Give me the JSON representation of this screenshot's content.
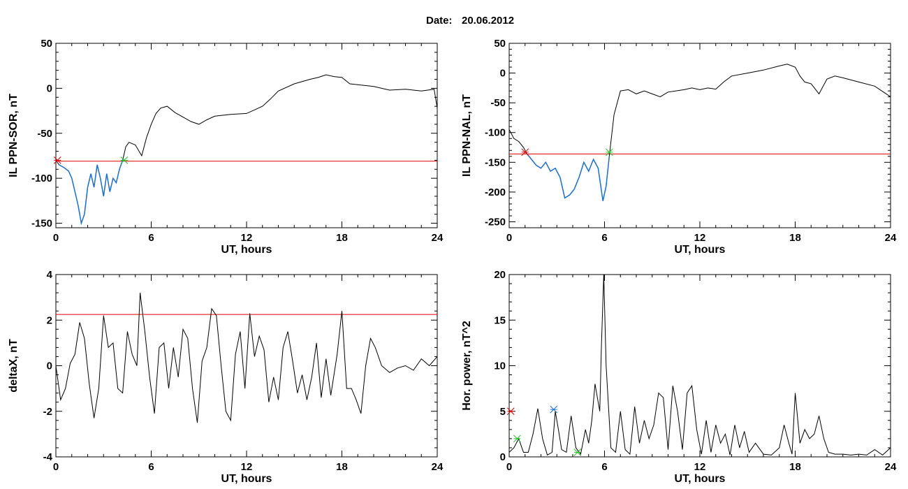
{
  "header": {
    "date_label": "Date:",
    "date_value": "20.06.2012"
  },
  "colors": {
    "main_line": "#000000",
    "storm_segment": "#1f6fd0",
    "threshold": "#e00000",
    "start_marker": "#e00000",
    "end_marker": "#2ec02e"
  },
  "chart_data": [
    {
      "id": "ppn_sor",
      "type": "line",
      "xlabel": "UT, hours",
      "ylabel": "IL PPN-SOR, nT",
      "xlim": [
        0,
        24
      ],
      "ylim": [
        -155,
        50
      ],
      "xticks": [
        0,
        6,
        12,
        18,
        24
      ],
      "yticks": [
        -150,
        -100,
        -50,
        0,
        50
      ],
      "threshold": -81,
      "highlight_range": [
        0.1,
        4.3
      ],
      "markers": [
        {
          "x": 0.1,
          "y": -80,
          "kind": "start"
        },
        {
          "x": 4.3,
          "y": -80,
          "kind": "end"
        }
      ],
      "series": [
        {
          "x": [
            0,
            0.2,
            0.5,
            0.8,
            1.0,
            1.2,
            1.4,
            1.6,
            1.8,
            2.0,
            2.2,
            2.4,
            2.6,
            2.8,
            3.0,
            3.2,
            3.4,
            3.6,
            3.8,
            4.0,
            4.2,
            4.4,
            4.6,
            5.0,
            5.4,
            5.7,
            6.0,
            6.3,
            6.6,
            7.0,
            7.5,
            8.0,
            8.5,
            9.0,
            9.5,
            10,
            11,
            12,
            12.5,
            13,
            13.5,
            14,
            15,
            16,
            16.5,
            17,
            17.5,
            18,
            18.5,
            19,
            20,
            21,
            22,
            23,
            23.8,
            24
          ],
          "y": [
            -80,
            -85,
            -88,
            -92,
            -100,
            -115,
            -130,
            -150,
            -140,
            -110,
            -95,
            -110,
            -85,
            -100,
            -120,
            -95,
            -115,
            -100,
            -105,
            -90,
            -80,
            -65,
            -60,
            -63,
            -75,
            -55,
            -40,
            -28,
            -22,
            -20,
            -27,
            -32,
            -37,
            -40,
            -35,
            -31,
            -29,
            -28,
            -24,
            -20,
            -12,
            -3,
            5,
            10,
            12,
            15,
            13,
            12,
            5,
            4,
            2,
            -2,
            -1,
            -3,
            -1,
            -22
          ]
        }
      ]
    },
    {
      "id": "ppn_nal",
      "type": "line",
      "xlabel": "UT, hours",
      "ylabel": "IL PPN-NAL, nT",
      "xlim": [
        0,
        24
      ],
      "ylim": [
        -260,
        50
      ],
      "xticks": [
        0,
        6,
        12,
        18,
        24
      ],
      "yticks": [
        -250,
        -200,
        -150,
        -100,
        -50,
        0,
        50
      ],
      "threshold": -136,
      "highlight_range": [
        1.0,
        6.3
      ],
      "markers": [
        {
          "x": 1.0,
          "y": -133,
          "kind": "start"
        },
        {
          "x": 6.3,
          "y": -133,
          "kind": "end"
        }
      ],
      "series": [
        {
          "x": [
            0,
            0.3,
            0.6,
            0.9,
            1.1,
            1.4,
            1.7,
            2.0,
            2.3,
            2.6,
            2.9,
            3.2,
            3.5,
            3.8,
            4.1,
            4.4,
            4.7,
            5.0,
            5.3,
            5.6,
            5.9,
            6.1,
            6.3,
            6.6,
            7.0,
            7.5,
            8.0,
            8.5,
            9.0,
            9.5,
            10,
            10.5,
            11,
            11.5,
            12,
            12.5,
            13,
            13.5,
            14,
            15,
            16,
            17,
            17.5,
            18,
            18.3,
            18.6,
            19,
            19.5,
            20,
            20.5,
            21,
            22,
            23,
            24
          ],
          "y": [
            -95,
            -110,
            -115,
            -125,
            -135,
            -145,
            -155,
            -160,
            -150,
            -165,
            -160,
            -175,
            -210,
            -205,
            -195,
            -175,
            -150,
            -165,
            -145,
            -160,
            -215,
            -190,
            -140,
            -70,
            -30,
            -28,
            -35,
            -30,
            -35,
            -40,
            -32,
            -30,
            -28,
            -25,
            -28,
            -25,
            -27,
            -15,
            -5,
            0,
            5,
            12,
            15,
            10,
            -5,
            -15,
            -18,
            -35,
            -10,
            -5,
            -8,
            -15,
            -22,
            -40
          ]
        }
      ]
    },
    {
      "id": "deltax",
      "type": "line",
      "xlabel": "UT, hours",
      "ylabel": "deltaX, nT",
      "xlim": [
        0,
        24
      ],
      "ylim": [
        -4,
        4
      ],
      "xticks": [
        0,
        6,
        12,
        18,
        24
      ],
      "yticks": [
        -4,
        -2,
        0,
        2,
        4
      ],
      "threshold": 2.25,
      "series": [
        {
          "x": [
            0,
            0.3,
            0.6,
            0.9,
            1.2,
            1.5,
            1.8,
            2.1,
            2.4,
            2.7,
            3.0,
            3.3,
            3.6,
            3.9,
            4.2,
            4.5,
            4.8,
            5.1,
            5.3,
            5.6,
            5.9,
            6.2,
            6.5,
            6.8,
            7.1,
            7.4,
            7.7,
            8.0,
            8.3,
            8.6,
            8.9,
            9.2,
            9.5,
            9.8,
            10.1,
            10.4,
            10.7,
            11.0,
            11.3,
            11.6,
            11.9,
            12.2,
            12.5,
            12.8,
            13.1,
            13.4,
            13.7,
            14.0,
            14.3,
            14.6,
            14.9,
            15.2,
            15.5,
            15.8,
            16.1,
            16.4,
            16.7,
            17.0,
            17.3,
            17.7,
            18.0,
            18.3,
            18.6,
            18.9,
            19.2,
            19.5,
            19.8,
            20.1,
            20.5,
            21.0,
            21.5,
            22.0,
            22.5,
            23.0,
            23.5,
            24
          ],
          "y": [
            0,
            -1.5,
            -1.0,
            0.1,
            0.5,
            1.9,
            1.2,
            -0.8,
            -2.3,
            -1.0,
            2.2,
            0.8,
            1.0,
            -1.0,
            -1.2,
            1.5,
            0.5,
            0.0,
            3.2,
            1.5,
            -0.5,
            -2.1,
            0.8,
            1.0,
            -1.0,
            0.8,
            -0.5,
            1.6,
            1.2,
            -1.0,
            -2.5,
            0.2,
            0.8,
            2.5,
            2.2,
            0.0,
            -2.0,
            -2.4,
            0.5,
            1.5,
            -1.0,
            2.3,
            0.4,
            1.3,
            0.7,
            -1.6,
            -0.5,
            -1.5,
            0.8,
            1.5,
            0.2,
            -1.2,
            -0.4,
            -1.5,
            -0.5,
            1.0,
            -1.4,
            0.3,
            -1.3,
            0.5,
            2.4,
            -1.0,
            -1.0,
            -1.5,
            -2.1,
            0.0,
            1.2,
            0.8,
            0.0,
            -0.3,
            -0.1,
            0.0,
            -0.2,
            0.3,
            0.0,
            0.4
          ]
        }
      ]
    },
    {
      "id": "hor_power",
      "type": "line",
      "xlabel": "UT, hours",
      "ylabel": "Hor. power, nT^2",
      "xlim": [
        0,
        24
      ],
      "ylim": [
        0,
        20
      ],
      "xticks": [
        0,
        6,
        12,
        18,
        24
      ],
      "yticks": [
        0,
        5,
        10,
        15,
        20
      ],
      "markers": [
        {
          "x": 0.1,
          "y": 5.0,
          "kind": "start"
        },
        {
          "x": 0.5,
          "y": 2.0,
          "kind": "end"
        },
        {
          "x": 2.8,
          "y": 5.2,
          "kind": "blue"
        },
        {
          "x": 4.3,
          "y": 0.5,
          "kind": "end"
        }
      ],
      "series": [
        {
          "x": [
            0,
            0.3,
            0.6,
            0.9,
            1.2,
            1.5,
            1.8,
            2.1,
            2.4,
            2.7,
            2.9,
            3.1,
            3.3,
            3.6,
            3.9,
            4.2,
            4.5,
            4.8,
            5.0,
            5.2,
            5.4,
            5.6,
            5.7,
            5.8,
            5.95,
            6.1,
            6.4,
            6.7,
            7.0,
            7.3,
            7.6,
            7.9,
            8.2,
            8.5,
            8.8,
            9.1,
            9.4,
            9.7,
            10.0,
            10.3,
            10.6,
            10.9,
            11.2,
            11.5,
            11.8,
            12.1,
            12.4,
            12.7,
            13.0,
            13.3,
            13.6,
            13.9,
            14.2,
            14.5,
            14.8,
            15.1,
            15.5,
            16.0,
            16.5,
            17.0,
            17.3,
            17.6,
            17.8,
            18.0,
            18.3,
            18.6,
            18.9,
            19.2,
            19.5,
            19.8,
            20.1,
            20.5,
            21.0,
            21.5,
            22.0,
            22.5,
            23.0,
            23.5,
            24
          ],
          "y": [
            0.5,
            1.0,
            2.0,
            0.5,
            0.5,
            2.5,
            5.3,
            2.0,
            0.2,
            0.5,
            5.0,
            3.0,
            0.8,
            0.5,
            4.5,
            1.0,
            0.3,
            3.0,
            1.5,
            4.0,
            8.0,
            6.0,
            5.0,
            12.0,
            20.0,
            10.0,
            1.0,
            0.5,
            5.0,
            0.8,
            0.3,
            5.5,
            1.5,
            4.0,
            2.0,
            3.5,
            7.0,
            6.5,
            0.8,
            7.8,
            5.0,
            0.8,
            7.0,
            7.8,
            3.0,
            0.3,
            4.0,
            0.5,
            3.5,
            1.5,
            2.5,
            0.2,
            3.5,
            1.0,
            2.8,
            0.5,
            1.5,
            0.3,
            0.2,
            1.0,
            3.5,
            1.5,
            0.3,
            7.0,
            1.5,
            3.0,
            2.0,
            2.5,
            4.5,
            2.0,
            0.5,
            0.3,
            0.3,
            0.2,
            0.3,
            0.2,
            0.8,
            0.2,
            1.0
          ]
        }
      ]
    }
  ]
}
